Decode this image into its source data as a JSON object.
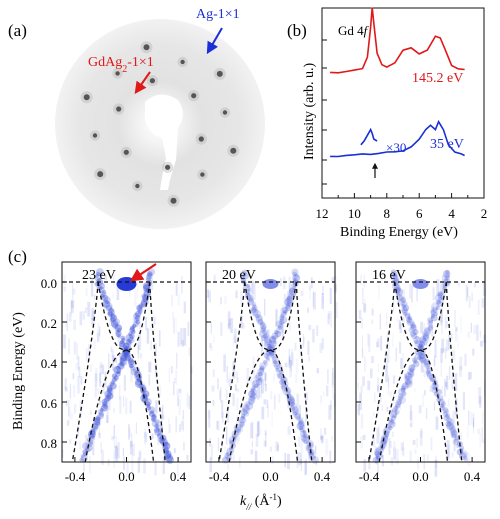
{
  "figure": {
    "panel_labels": [
      "(a)",
      "(b)",
      "(c)"
    ]
  },
  "panel_a": {
    "annotation_ag": "Ag-1×1",
    "annotation_gdag2_main": "GdAg",
    "annotation_gdag2_sub": "2",
    "annotation_gdag2_tail": "-1×1",
    "colors": {
      "ag_arrow": "#1a2fd6",
      "gdag2_arrow": "#e01818"
    }
  },
  "panel_b": {
    "ylabel": "Intensity (arb. u.)",
    "xlabel": "Binding Energy (eV)",
    "xticks": [
      "12",
      "10",
      "8",
      "6",
      "4",
      "2"
    ],
    "label_gd4f": "Gd 4",
    "label_gd4f_italic": "f",
    "label_145": "145.2  eV",
    "label_35": "35 eV",
    "label_x30": "×30",
    "colors": {
      "red_series": "#e01818",
      "blue_series": "#1a2fd6"
    }
  },
  "panel_c": {
    "ylabel": "Binding Energy (eV)",
    "xlabel_k": "k",
    "xlabel_sub": "//",
    "xlabel_unit": " (Å",
    "xlabel_exp": "-1",
    "xlabel_close": ")",
    "yticks": [
      "0.0",
      "0.2",
      "0.4",
      "0.6",
      "0.8"
    ],
    "subpanels": [
      {
        "energy_label": "23 eV",
        "xticks": [
          "-0.4",
          "0.0",
          "0.4"
        ]
      },
      {
        "energy_label": "20 eV",
        "xticks": [
          "-0.4",
          "0.0",
          "0.4"
        ]
      },
      {
        "energy_label": "16 eV",
        "xticks": [
          "-0.4",
          "0.0",
          "0.4"
        ]
      }
    ],
    "colors": {
      "intensity": "#3a4fd8",
      "arrow": "#e01818"
    }
  },
  "chart_data": [
    {
      "type": "line",
      "panel": "(b)",
      "xlabel": "Binding Energy (eV)",
      "ylabel": "Intensity (arb. u.)",
      "xlim": [
        12,
        2
      ],
      "x_reversed": true,
      "series": [
        {
          "name": "145.2  eV",
          "x": [
            11.5,
            11,
            10.5,
            10,
            9.5,
            9.2,
            9.0,
            8.9,
            8.8,
            8.6,
            8.3,
            8.0,
            7.5,
            7.0,
            6.5,
            6.0,
            5.5,
            5.0,
            4.7,
            4.4,
            4.0,
            3.6,
            3.2
          ],
          "y": [
            0.66,
            0.66,
            0.665,
            0.67,
            0.68,
            0.74,
            0.9,
            1.0,
            0.92,
            0.76,
            0.7,
            0.69,
            0.71,
            0.78,
            0.79,
            0.76,
            0.78,
            0.85,
            0.84,
            0.78,
            0.7,
            0.68,
            0.675
          ]
        },
        {
          "name": "35 eV",
          "x": [
            11.5,
            11,
            10.5,
            10,
            9.5,
            9.0,
            8.5,
            8.0,
            7.5,
            7.0,
            6.5,
            6.0,
            5.6,
            5.3,
            5.0,
            4.8,
            4.5,
            4.2,
            3.8,
            3.4,
            3.2
          ],
          "y": [
            0.22,
            0.22,
            0.225,
            0.225,
            0.23,
            0.23,
            0.235,
            0.24,
            0.245,
            0.25,
            0.27,
            0.31,
            0.36,
            0.38,
            0.36,
            0.4,
            0.36,
            0.28,
            0.24,
            0.23,
            0.225
          ]
        },
        {
          "name": "×30",
          "x": [
            9.6,
            9.4,
            9.2,
            9.0,
            8.9,
            8.8,
            8.6
          ],
          "y": [
            0.28,
            0.3,
            0.33,
            0.36,
            0.34,
            0.31,
            0.3
          ]
        }
      ]
    },
    {
      "type": "heatmap",
      "panel": "(c)",
      "xlabel": "k// (Å-1)",
      "ylabel": "Binding Energy (eV)",
      "xlim": [
        -0.5,
        0.5
      ],
      "ylim": [
        0.9,
        -0.1
      ],
      "subpanels": [
        {
          "label": "23 eV",
          "crossing_energy": 0.34,
          "k_fermi": [
            -0.22,
            0.18
          ]
        },
        {
          "label": "20 eV",
          "crossing_energy": 0.34,
          "k_fermi": [
            -0.2,
            0.2
          ]
        },
        {
          "label": "16 eV",
          "crossing_energy": 0.34,
          "k_fermi": [
            -0.2,
            0.2
          ]
        }
      ]
    }
  ]
}
